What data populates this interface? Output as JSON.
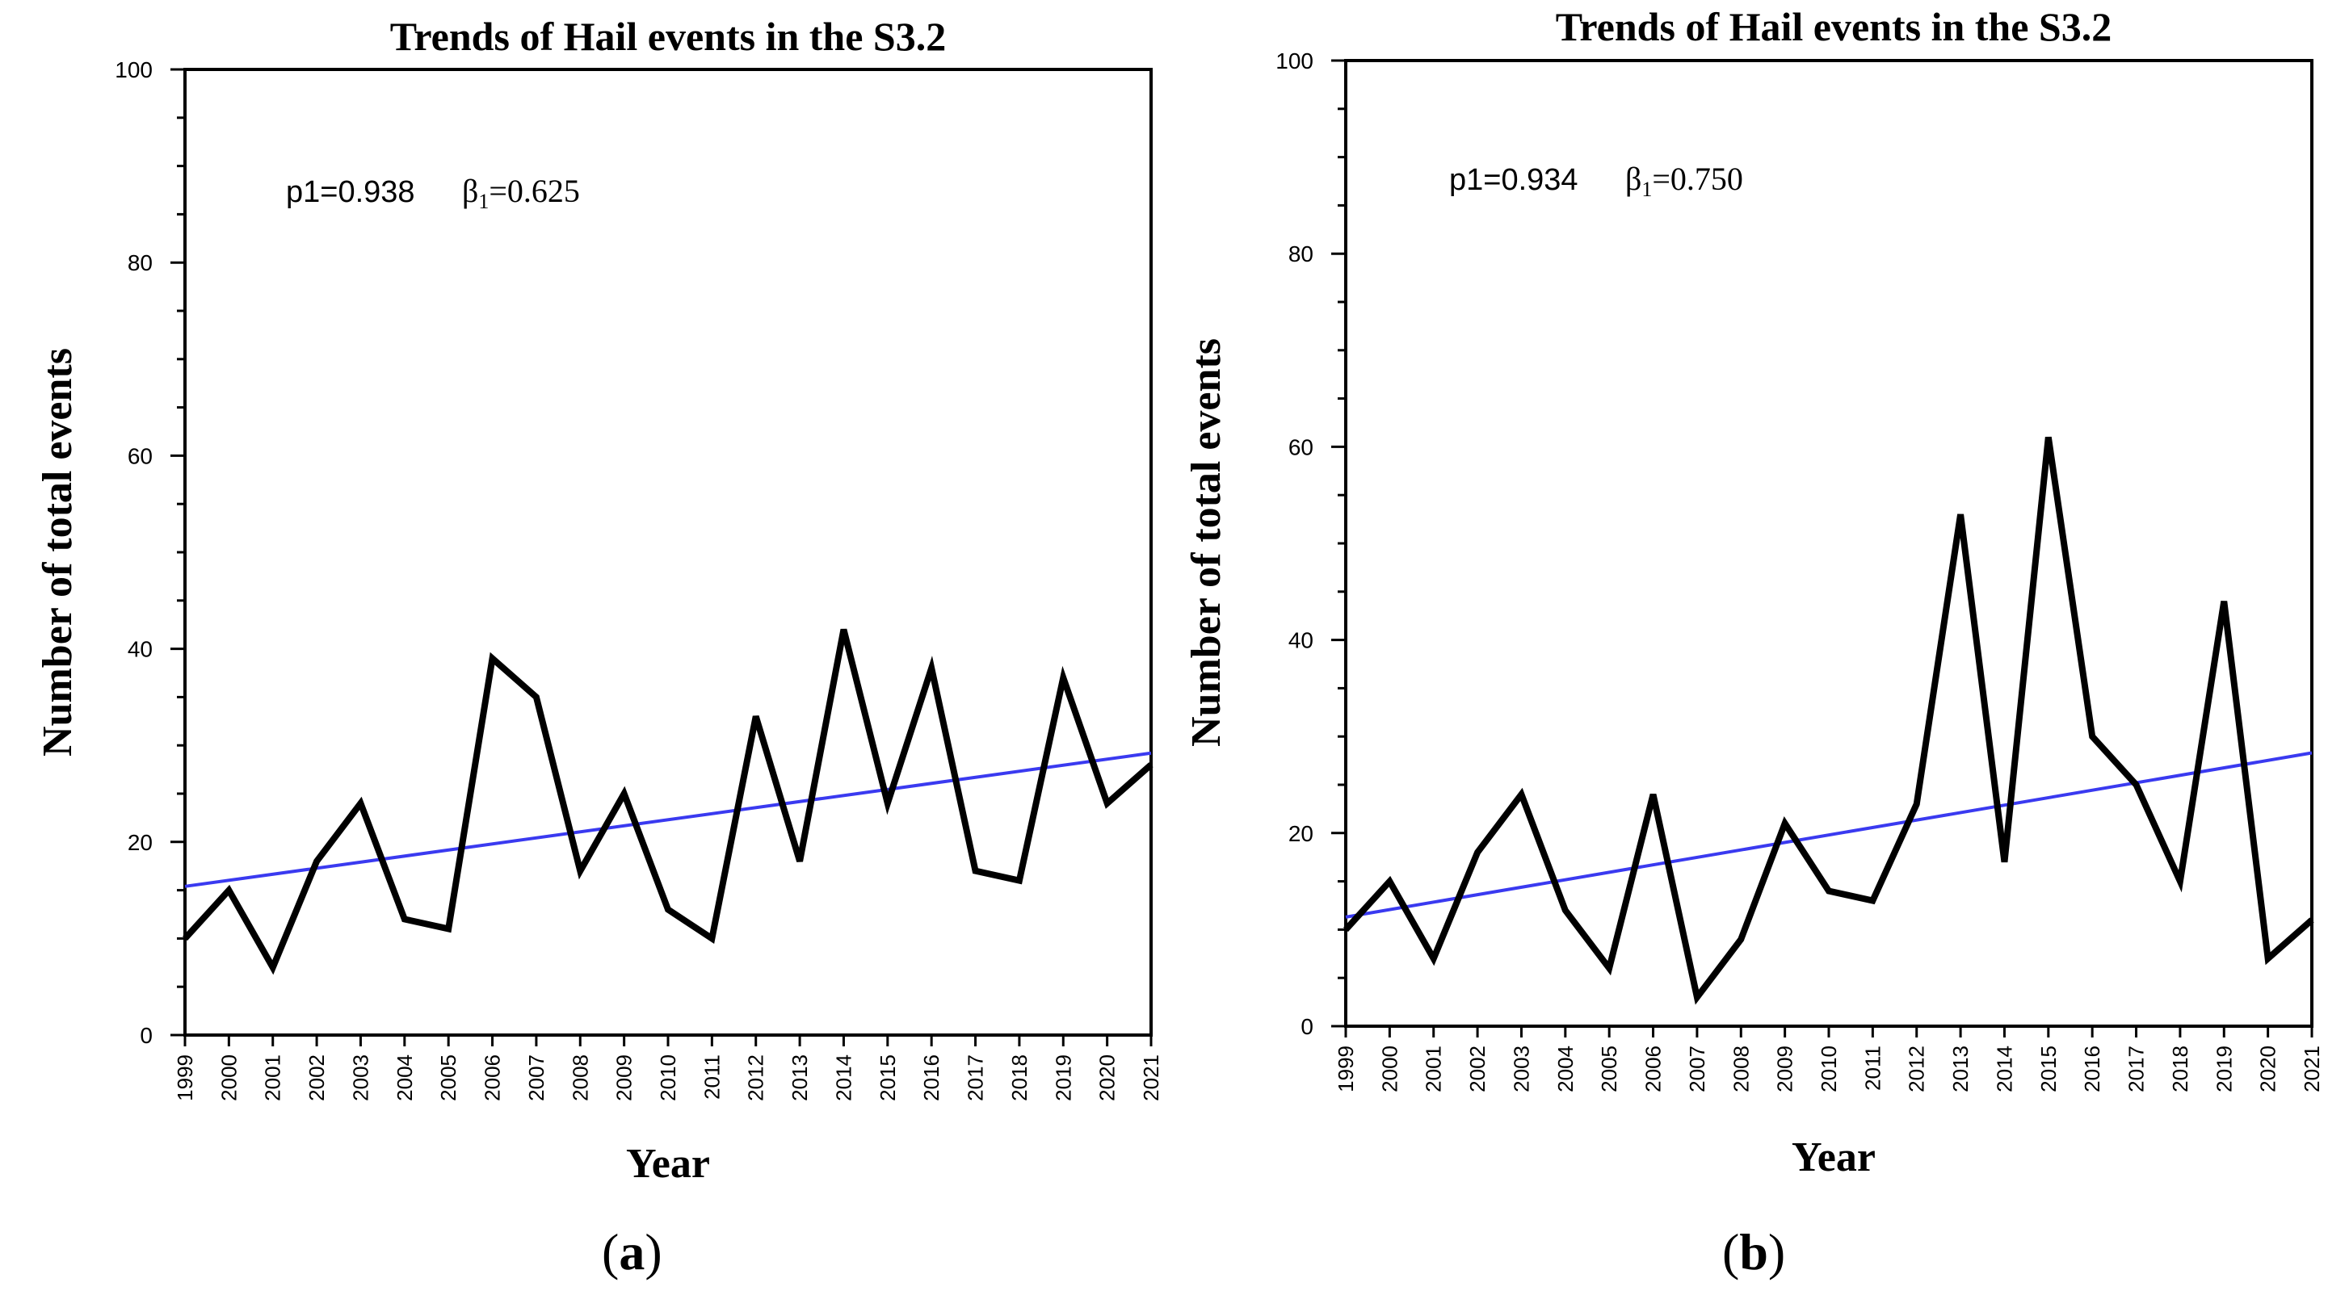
{
  "chart_data": [
    {
      "type": "line",
      "panel_label": "a",
      "title": "Trends of Hail events in the S3.2",
      "xlabel": "Year",
      "ylabel": "Number of total events",
      "ylim": [
        0,
        100
      ],
      "y_ticks": [
        "0",
        "20",
        "40",
        "60",
        "80",
        "100"
      ],
      "x": [
        "1999",
        "2000",
        "2001",
        "2002",
        "2003",
        "2004",
        "2005",
        "2006",
        "2007",
        "2008",
        "2009",
        "2010",
        "2011",
        "2012",
        "2013",
        "2014",
        "2015",
        "2016",
        "2017",
        "2018",
        "2019",
        "2020",
        "2021"
      ],
      "series": [
        {
          "name": "Hail events",
          "color": "#000000",
          "values": [
            10,
            15,
            7,
            18,
            24,
            12,
            11,
            39,
            35,
            17,
            25,
            13,
            10,
            33,
            18,
            42,
            24,
            38,
            17,
            16,
            37,
            24,
            28
          ]
        }
      ],
      "trend": {
        "name": "Linear trend",
        "color": "#3a3af0",
        "start": 15.4,
        "end": 29.2
      },
      "annotation": {
        "p_text": "p1=0.938",
        "beta_symbol": "β",
        "beta_sub": "1",
        "beta_value": "=0.625"
      },
      "grid": false
    },
    {
      "type": "line",
      "panel_label": "b",
      "title": "Trends of Hail events in the S3.2",
      "xlabel": "Year",
      "ylabel": "Number of total events",
      "ylim": [
        0,
        100
      ],
      "y_ticks": [
        "0",
        "20",
        "40",
        "60",
        "80",
        "100"
      ],
      "x": [
        "1999",
        "2000",
        "2001",
        "2002",
        "2003",
        "2004",
        "2005",
        "2006",
        "2007",
        "2008",
        "2009",
        "2010",
        "2011",
        "2012",
        "2013",
        "2014",
        "2015",
        "2016",
        "2017",
        "2018",
        "2019",
        "2020",
        "2021"
      ],
      "series": [
        {
          "name": "Hail events",
          "color": "#000000",
          "values": [
            10,
            15,
            7,
            18,
            24,
            12,
            6,
            24,
            3,
            9,
            21,
            14,
            13,
            23,
            53,
            17,
            61,
            30,
            25,
            15,
            44,
            7,
            11
          ]
        }
      ],
      "trend": {
        "name": "Linear trend",
        "color": "#3a3af0",
        "start": 11.3,
        "end": 28.3
      },
      "annotation": {
        "p_text": "p1=0.934",
        "beta_symbol": "β",
        "beta_sub": "1",
        "beta_value": "=0.750"
      },
      "grid": false
    }
  ]
}
